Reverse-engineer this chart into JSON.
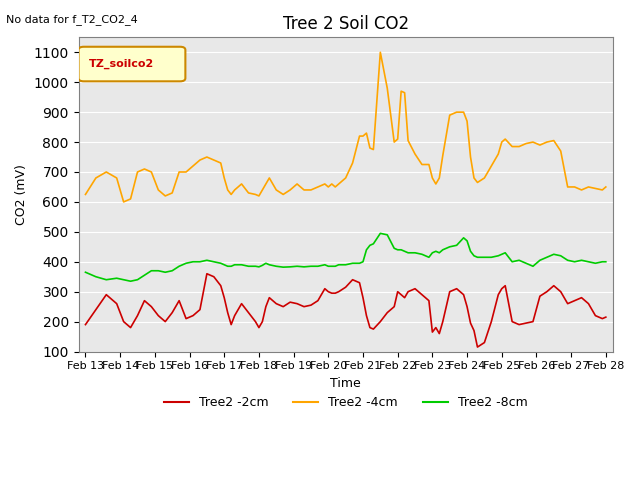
{
  "title": "Tree 2 Soil CO2",
  "subtitle": "No data for f_T2_CO2_4",
  "xlabel": "Time",
  "ylabel": "CO2 (mV)",
  "ylim": [
    100,
    1150
  ],
  "yticks": [
    100,
    200,
    300,
    400,
    500,
    600,
    700,
    800,
    900,
    1000,
    1100
  ],
  "x_labels": [
    "Feb 13",
    "Feb 14",
    "Feb 15",
    "Feb 16",
    "Feb 17",
    "Feb 18",
    "Feb 19",
    "Feb 20",
    "Feb 21",
    "Feb 22",
    "Feb 23",
    "Feb 24",
    "Feb 25",
    "Feb 26",
    "Feb 27",
    "Feb 28"
  ],
  "legend_label": "TZ_soilco2",
  "series_labels": [
    "Tree2 -2cm",
    "Tree2 -4cm",
    "Tree2 -8cm"
  ],
  "series_colors": [
    "#cc0000",
    "#ffa500",
    "#00cc00"
  ],
  "background_color": "#e8e8e8",
  "red": {
    "x": [
      0,
      0.3,
      0.6,
      0.9,
      1.1,
      1.3,
      1.5,
      1.7,
      1.9,
      2.1,
      2.3,
      2.5,
      2.7,
      2.9,
      3.1,
      3.3,
      3.5,
      3.7,
      3.9,
      4.0,
      4.1,
      4.2,
      4.3,
      4.5,
      4.7,
      4.9,
      5.0,
      5.1,
      5.2,
      5.3,
      5.5,
      5.7,
      5.9,
      6.1,
      6.3,
      6.5,
      6.7,
      6.9,
      7.0,
      7.1,
      7.2,
      7.3,
      7.5,
      7.7,
      7.9,
      8.0,
      8.1,
      8.2,
      8.3,
      8.5,
      8.7,
      8.9,
      9.0,
      9.1,
      9.2,
      9.3,
      9.5,
      9.7,
      9.9,
      10.0,
      10.1,
      10.2,
      10.3,
      10.5,
      10.7,
      10.9,
      11.0,
      11.1,
      11.2,
      11.3,
      11.5,
      11.7,
      11.9,
      12.0,
      12.1,
      12.3,
      12.5,
      12.7,
      12.9,
      13.1,
      13.3,
      13.5,
      13.7,
      13.9,
      14.1,
      14.3,
      14.5,
      14.7,
      14.9,
      15.0
    ],
    "y": [
      190,
      240,
      290,
      260,
      200,
      180,
      220,
      270,
      250,
      220,
      200,
      230,
      270,
      210,
      220,
      240,
      360,
      350,
      320,
      280,
      230,
      190,
      220,
      260,
      230,
      200,
      180,
      200,
      250,
      280,
      260,
      250,
      265,
      260,
      250,
      255,
      270,
      310,
      300,
      295,
      295,
      300,
      315,
      340,
      330,
      280,
      220,
      180,
      175,
      200,
      230,
      250,
      300,
      290,
      280,
      300,
      310,
      290,
      270,
      165,
      180,
      160,
      200,
      300,
      310,
      290,
      250,
      195,
      170,
      115,
      130,
      200,
      290,
      310,
      320,
      200,
      190,
      195,
      200,
      285,
      300,
      320,
      300,
      260,
      270,
      280,
      260,
      220,
      210,
      215
    ]
  },
  "orange": {
    "x": [
      0,
      0.3,
      0.6,
      0.9,
      1.1,
      1.3,
      1.5,
      1.7,
      1.9,
      2.1,
      2.3,
      2.5,
      2.7,
      2.9,
      3.1,
      3.3,
      3.5,
      3.7,
      3.9,
      4.0,
      4.1,
      4.2,
      4.3,
      4.5,
      4.7,
      4.9,
      5.0,
      5.1,
      5.2,
      5.3,
      5.5,
      5.7,
      5.9,
      6.1,
      6.3,
      6.5,
      6.7,
      6.9,
      7.0,
      7.1,
      7.2,
      7.3,
      7.5,
      7.7,
      7.9,
      8.0,
      8.1,
      8.2,
      8.3,
      8.5,
      8.7,
      8.9,
      9.0,
      9.1,
      9.2,
      9.3,
      9.5,
      9.7,
      9.9,
      10.0,
      10.1,
      10.2,
      10.3,
      10.5,
      10.7,
      10.9,
      11.0,
      11.1,
      11.2,
      11.3,
      11.5,
      11.7,
      11.9,
      12.0,
      12.1,
      12.3,
      12.5,
      12.7,
      12.9,
      13.1,
      13.3,
      13.5,
      13.7,
      13.9,
      14.1,
      14.3,
      14.5,
      14.7,
      14.9,
      15.0
    ],
    "y": [
      625,
      680,
      700,
      680,
      600,
      610,
      700,
      710,
      700,
      640,
      620,
      630,
      700,
      700,
      720,
      740,
      750,
      740,
      730,
      680,
      640,
      625,
      640,
      660,
      630,
      625,
      620,
      640,
      660,
      680,
      640,
      625,
      640,
      660,
      640,
      640,
      650,
      660,
      650,
      660,
      650,
      660,
      680,
      730,
      820,
      820,
      830,
      780,
      775,
      1100,
      980,
      800,
      810,
      970,
      965,
      805,
      760,
      725,
      725,
      680,
      660,
      680,
      755,
      890,
      900,
      900,
      870,
      750,
      680,
      665,
      680,
      720,
      760,
      800,
      810,
      785,
      785,
      795,
      800,
      790,
      800,
      805,
      770,
      650,
      650,
      640,
      650,
      645,
      640,
      650
    ]
  },
  "green": {
    "x": [
      0,
      0.3,
      0.6,
      0.9,
      1.1,
      1.3,
      1.5,
      1.7,
      1.9,
      2.1,
      2.3,
      2.5,
      2.7,
      2.9,
      3.1,
      3.3,
      3.5,
      3.7,
      3.9,
      4.0,
      4.1,
      4.2,
      4.3,
      4.5,
      4.7,
      4.9,
      5.0,
      5.1,
      5.2,
      5.3,
      5.5,
      5.7,
      5.9,
      6.1,
      6.3,
      6.5,
      6.7,
      6.9,
      7.0,
      7.1,
      7.2,
      7.3,
      7.5,
      7.7,
      7.9,
      8.0,
      8.1,
      8.2,
      8.3,
      8.5,
      8.7,
      8.9,
      9.0,
      9.1,
      9.2,
      9.3,
      9.5,
      9.7,
      9.9,
      10.0,
      10.1,
      10.2,
      10.3,
      10.5,
      10.7,
      10.9,
      11.0,
      11.1,
      11.2,
      11.3,
      11.5,
      11.7,
      11.9,
      12.0,
      12.1,
      12.3,
      12.5,
      12.7,
      12.9,
      13.1,
      13.3,
      13.5,
      13.7,
      13.9,
      14.1,
      14.3,
      14.5,
      14.7,
      14.9,
      15.0
    ],
    "y": [
      365,
      350,
      340,
      345,
      340,
      335,
      340,
      355,
      370,
      370,
      365,
      370,
      385,
      395,
      400,
      400,
      405,
      400,
      395,
      390,
      385,
      385,
      390,
      390,
      385,
      385,
      383,
      388,
      395,
      390,
      385,
      382,
      383,
      385,
      383,
      385,
      385,
      390,
      385,
      385,
      385,
      390,
      390,
      395,
      395,
      400,
      440,
      455,
      460,
      495,
      490,
      445,
      440,
      440,
      435,
      430,
      430,
      425,
      415,
      430,
      435,
      430,
      440,
      450,
      455,
      480,
      470,
      435,
      420,
      415,
      415,
      415,
      420,
      425,
      430,
      400,
      405,
      395,
      385,
      405,
      415,
      425,
      420,
      405,
      400,
      405,
      400,
      395,
      400,
      400
    ]
  }
}
